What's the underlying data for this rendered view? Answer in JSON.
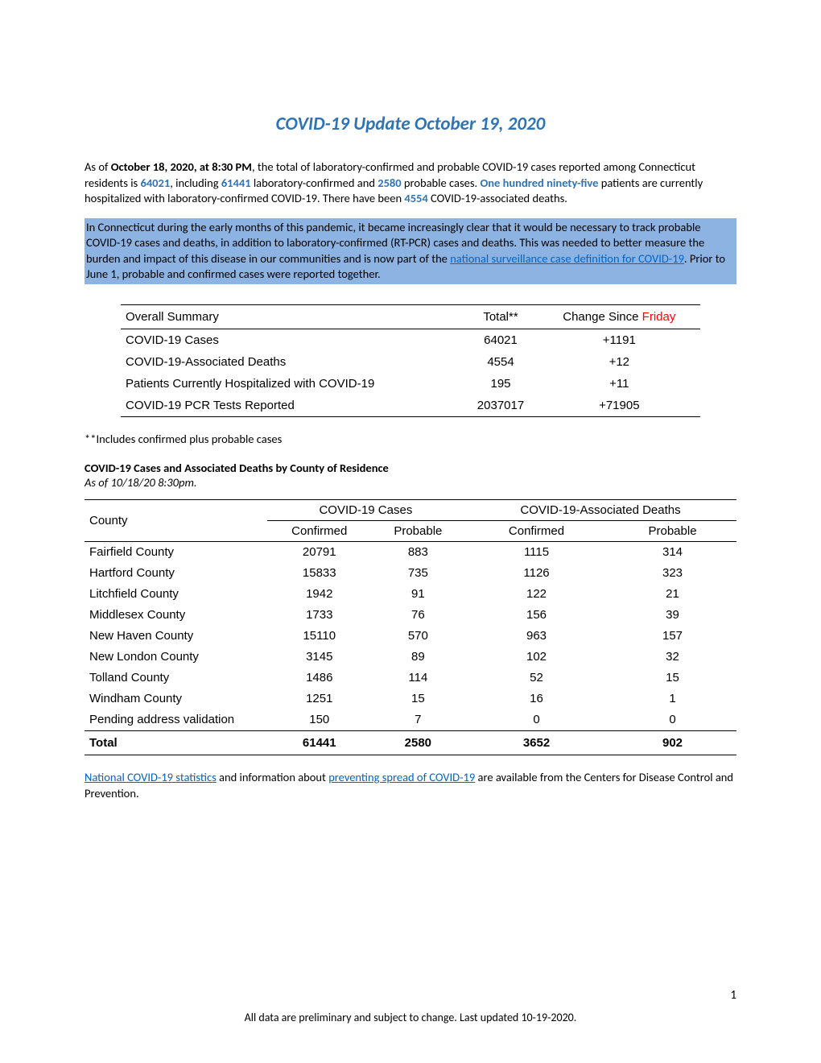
{
  "title": "COVID-19 Update October 19, 2020",
  "intro": {
    "prefix": "As of ",
    "as_of_bold": "October 18, 2020, at 8:30 PM",
    "seg1": ", the total of laboratory-confirmed and probable COVID-19 cases reported among Connecticut residents is ",
    "total_cases": "64021",
    "seg2": ", including ",
    "confirmed": "61441",
    "seg3": " laboratory-confirmed and ",
    "probable": "2580",
    "seg4": " probable cases. ",
    "hospitalized_words": "One hundred ninety-five",
    "seg5": " patients are currently hospitalized with laboratory-confirmed COVID-19. There have been ",
    "deaths": "4554",
    "seg6": " COVID-19-associated deaths."
  },
  "highlight": {
    "part1": "In Connecticut during the early months of this pandemic, it became increasingly clear that it would be necessary to track probable COVID-19 cases and deaths, in addition to laboratory-confirmed (RT-PCR) cases and deaths. This was needed to better measure the burden and impact of this disease in our communities and is now part of the ",
    "link_text": "national surveillance case definition for COVID-19",
    "part2": ". Prior to June 1, probable and confirmed cases were reported together."
  },
  "summary_table": {
    "col1": "Overall Summary",
    "col2": "Total**",
    "col3_pre": "Change Since ",
    "col3_red": "Friday",
    "rows": [
      {
        "label": "COVID-19 Cases",
        "total": "64021",
        "change": "+1191"
      },
      {
        "label": "COVID-19-Associated Deaths",
        "total": "4554",
        "change": "+12"
      },
      {
        "label": "Patients Currently Hospitalized with COVID-19",
        "total": "195",
        "change": "+11"
      },
      {
        "label": "COVID-19 PCR Tests Reported",
        "total": "2037017",
        "change": "+71905"
      }
    ]
  },
  "footnote": "**Includes confirmed plus probable cases",
  "section": {
    "title": "COVID-19 Cases and Associated Deaths by County of Residence",
    "sub": "As of 10/18/20 8:30pm."
  },
  "county_table": {
    "col_county": "County",
    "group_cases": "COVID-19 Cases",
    "group_deaths": "COVID-19-Associated Deaths",
    "sub_confirmed": "Confirmed",
    "sub_probable": "Probable",
    "rows": [
      {
        "c": "Fairfield County",
        "cc": "20791",
        "cp": "883",
        "dc": "1115",
        "dp": "314"
      },
      {
        "c": "Hartford County",
        "cc": "15833",
        "cp": "735",
        "dc": "1126",
        "dp": "323"
      },
      {
        "c": "Litchfield County",
        "cc": "1942",
        "cp": "91",
        "dc": "122",
        "dp": "21"
      },
      {
        "c": "Middlesex County",
        "cc": "1733",
        "cp": "76",
        "dc": "156",
        "dp": "39"
      },
      {
        "c": "New Haven County",
        "cc": "15110",
        "cp": "570",
        "dc": "963",
        "dp": "157"
      },
      {
        "c": "New London County",
        "cc": "3145",
        "cp": "89",
        "dc": "102",
        "dp": "32"
      },
      {
        "c": "Tolland County",
        "cc": "1486",
        "cp": "114",
        "dc": "52",
        "dp": "15"
      },
      {
        "c": "Windham County",
        "cc": "1251",
        "cp": "15",
        "dc": "16",
        "dp": "1"
      },
      {
        "c": "Pending address validation",
        "cc": "150",
        "cp": "7",
        "dc": "0",
        "dp": "0"
      }
    ],
    "total_row": {
      "c": "Total",
      "cc": "61441",
      "cp": "2580",
      "dc": "3652",
      "dp": "902"
    }
  },
  "links_para": {
    "link1": "National COVID-19 statistics",
    "mid1": " and information about ",
    "link2": "preventing spread of COVID-19",
    "tail": " are available from the Centers for Disease Control and Prevention."
  },
  "page_number": "1",
  "footer": "All data are preliminary and subject to change. Last updated 10-19-2020."
}
